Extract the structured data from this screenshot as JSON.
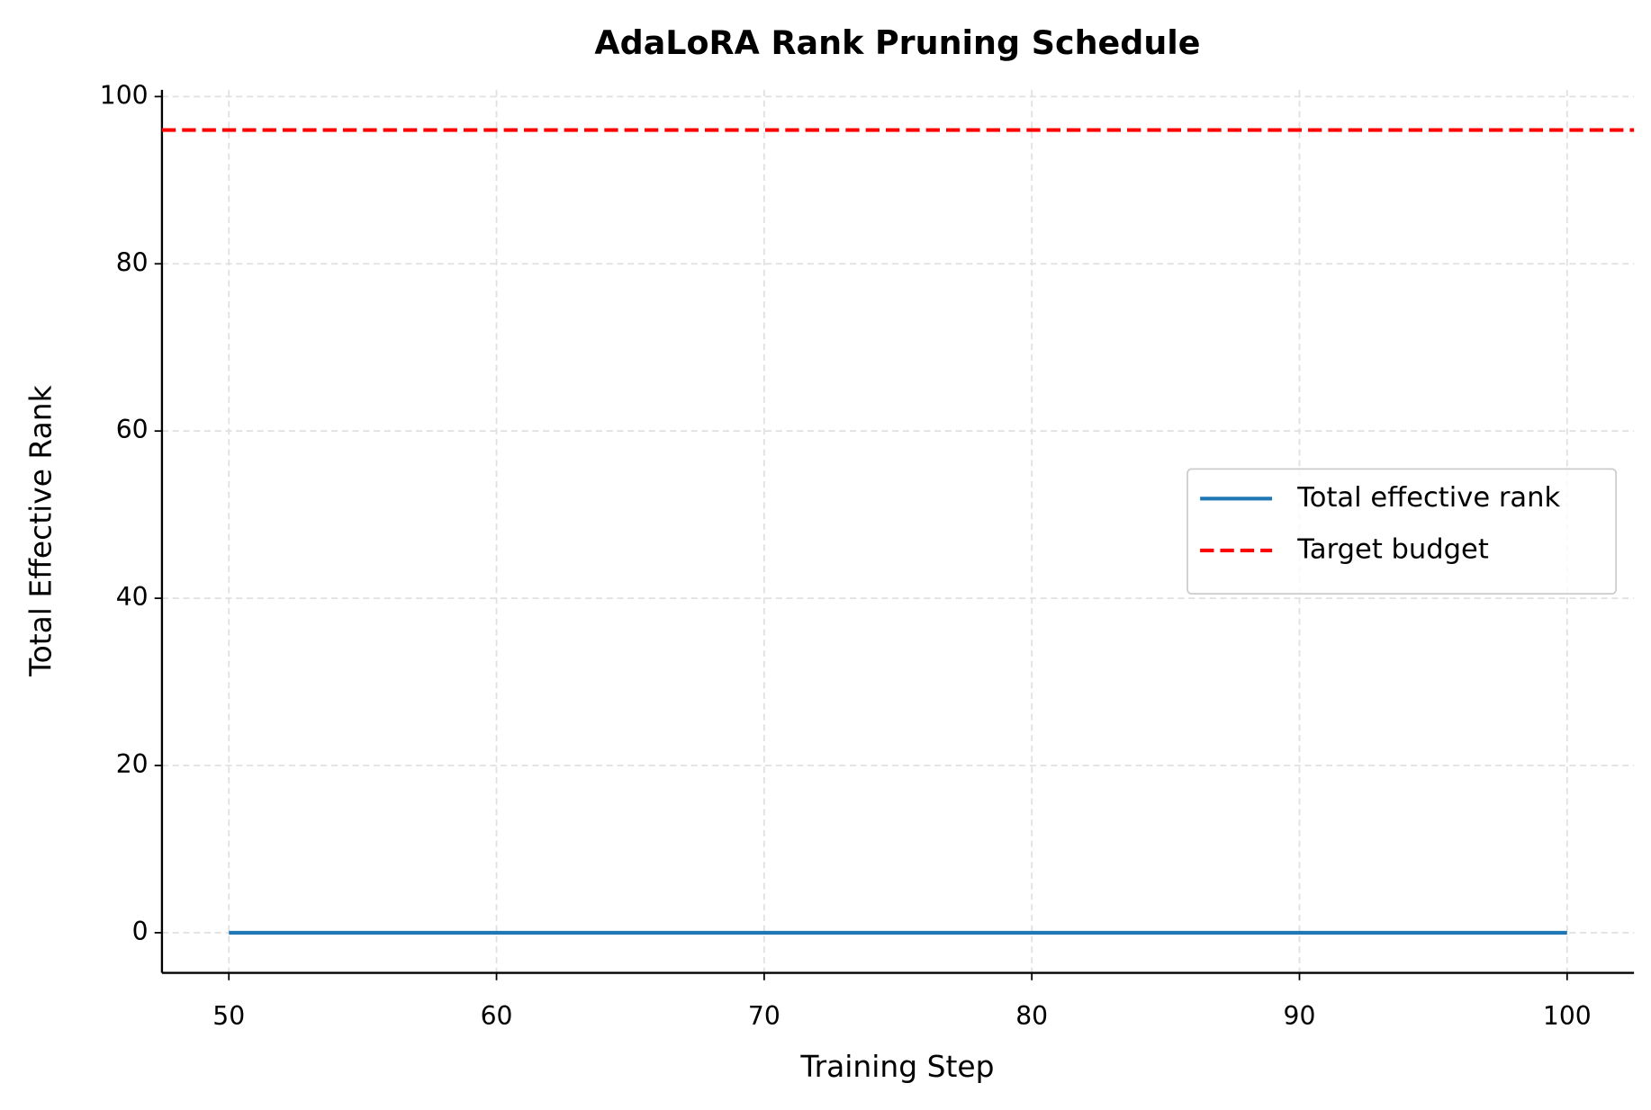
{
  "chart_data": {
    "type": "line",
    "title": "AdaLoRA Rank Pruning Schedule",
    "xlabel": "Training Step",
    "ylabel": "Total Effective Rank",
    "x": [
      50,
      60,
      70,
      80,
      90,
      100
    ],
    "series": [
      {
        "name": "Total effective rank",
        "color": "#1f77b4",
        "values": [
          0,
          0,
          0,
          0,
          0,
          0
        ]
      }
    ],
    "hlines": [
      {
        "name": "Target budget",
        "color": "#ff0000",
        "y": 96,
        "style": "dashed"
      }
    ],
    "xlim": [
      47.5,
      102.5
    ],
    "xticks": [
      50,
      60,
      70,
      80,
      90,
      100
    ],
    "ylim": [
      -4.8,
      100.8
    ],
    "yticks": [
      0,
      20,
      40,
      60,
      80,
      100
    ],
    "grid": true,
    "legend": "center right"
  }
}
